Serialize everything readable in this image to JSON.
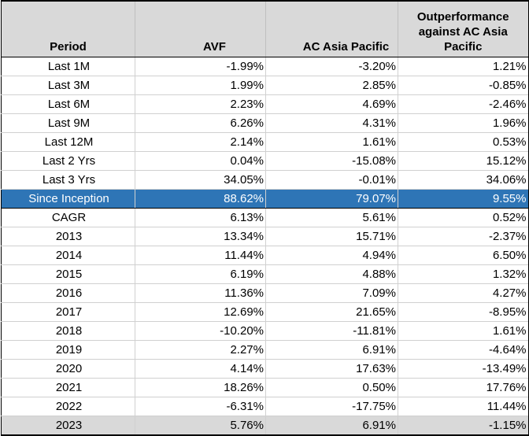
{
  "table": {
    "headers": {
      "period": "Period",
      "avf": "AVF",
      "ac": "AC Asia Pacific",
      "out": "Outperformance against AC Asia Pacific"
    },
    "rows": [
      {
        "period": "Last 1M",
        "avf": "-1.99%",
        "ac": "-3.20%",
        "out": "1.21%"
      },
      {
        "period": "Last 3M",
        "avf": "1.99%",
        "ac": "2.85%",
        "out": "-0.85%"
      },
      {
        "period": "Last 6M",
        "avf": "2.23%",
        "ac": "4.69%",
        "out": "-2.46%"
      },
      {
        "period": "Last 9M",
        "avf": "6.26%",
        "ac": "4.31%",
        "out": "1.96%"
      },
      {
        "period": "Last 12M",
        "avf": "2.14%",
        "ac": "1.61%",
        "out": "0.53%"
      },
      {
        "period": "Last 2 Yrs",
        "avf": "0.04%",
        "ac": "-15.08%",
        "out": "15.12%"
      },
      {
        "period": "Last 3 Yrs",
        "avf": "34.05%",
        "ac": "-0.01%",
        "out": "34.06%"
      },
      {
        "period": "Since Inception",
        "avf": "88.62%",
        "ac": "79.07%",
        "out": "9.55%"
      },
      {
        "period": "CAGR",
        "avf": "6.13%",
        "ac": "5.61%",
        "out": "0.52%"
      },
      {
        "period": "2013",
        "avf": "13.34%",
        "ac": "15.71%",
        "out": "-2.37%"
      },
      {
        "period": "2014",
        "avf": "11.44%",
        "ac": "4.94%",
        "out": "6.50%"
      },
      {
        "period": "2015",
        "avf": "6.19%",
        "ac": "4.88%",
        "out": "1.32%"
      },
      {
        "period": "2016",
        "avf": "11.36%",
        "ac": "7.09%",
        "out": "4.27%"
      },
      {
        "period": "2017",
        "avf": "12.69%",
        "ac": "21.65%",
        "out": "-8.95%"
      },
      {
        "period": "2018",
        "avf": "-10.20%",
        "ac": "-11.81%",
        "out": "1.61%"
      },
      {
        "period": "2019",
        "avf": "2.27%",
        "ac": "6.91%",
        "out": "-4.64%"
      },
      {
        "period": "2020",
        "avf": "4.14%",
        "ac": "17.63%",
        "out": "-13.49%"
      },
      {
        "period": "2021",
        "avf": "18.26%",
        "ac": "0.50%",
        "out": "17.76%"
      },
      {
        "period": "2022",
        "avf": "-6.31%",
        "ac": "-17.75%",
        "out": "11.44%"
      },
      {
        "period": "2023",
        "avf": "5.76%",
        "ac": "6.91%",
        "out": "-1.15%"
      }
    ]
  },
  "colors": {
    "header_bg": "#d9d9d9",
    "highlight_bg": "#2e75b6",
    "highlight_text": "#ffffff",
    "last_row_bg": "#d9d9d9"
  }
}
